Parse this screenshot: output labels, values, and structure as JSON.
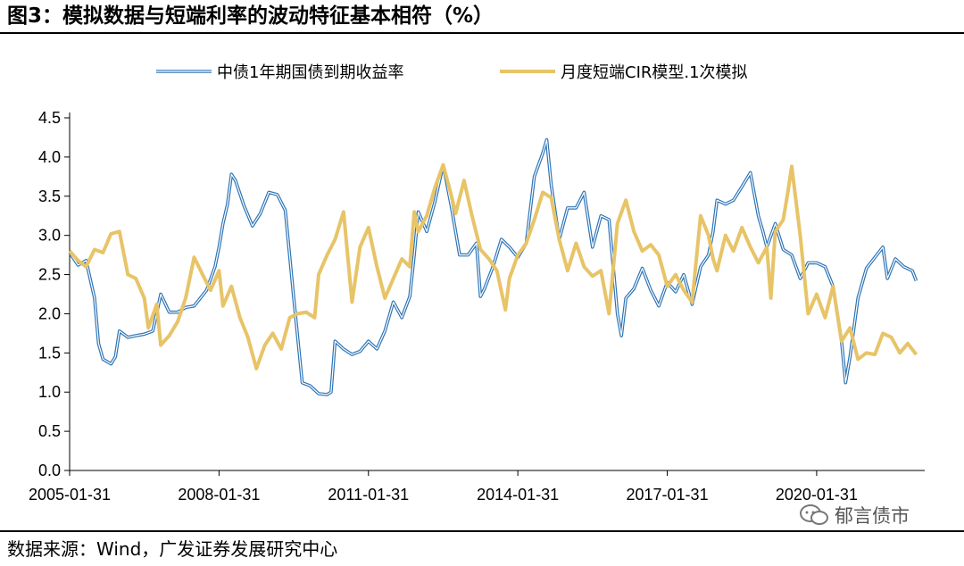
{
  "figure": {
    "title": "图3：模拟数据与短端利率的波动特征基本相符（%）",
    "source": "数据来源：Wind，广发证券发展研究中心",
    "watermark": "郁言债市"
  },
  "chart_data": {
    "type": "line",
    "title": "",
    "xlabel": "",
    "ylabel": "",
    "ylim": [
      0,
      4.5
    ],
    "yticks": [
      "0.0",
      "0.5",
      "1.0",
      "1.5",
      "2.0",
      "2.5",
      "3.0",
      "3.5",
      "4.0",
      "4.5"
    ],
    "x_tick_labels": [
      "2005-01-31",
      "2008-01-31",
      "2011-01-31",
      "2014-01-31",
      "2017-01-31",
      "2020-01-31"
    ],
    "x_tick_years": [
      2005.0,
      2008.0,
      2011.0,
      2014.0,
      2017.0,
      2020.0
    ],
    "x_range": [
      2005.0,
      2022.17
    ],
    "grid": false,
    "legend_position": "top",
    "series": [
      {
        "name": "中债1年期国债到期收益率",
        "color": "#2E75B6",
        "style": "double",
        "points": [
          [
            2005.0,
            2.78
          ],
          [
            2005.17,
            2.62
          ],
          [
            2005.33,
            2.68
          ],
          [
            2005.5,
            2.2
          ],
          [
            2005.58,
            1.62
          ],
          [
            2005.67,
            1.42
          ],
          [
            2005.83,
            1.36
          ],
          [
            2005.92,
            1.45
          ],
          [
            2006.0,
            1.78
          ],
          [
            2006.17,
            1.7
          ],
          [
            2006.33,
            1.72
          ],
          [
            2006.5,
            1.74
          ],
          [
            2006.67,
            1.78
          ],
          [
            2006.83,
            2.25
          ],
          [
            2007.0,
            2.02
          ],
          [
            2007.17,
            2.02
          ],
          [
            2007.33,
            2.08
          ],
          [
            2007.5,
            2.1
          ],
          [
            2007.75,
            2.3
          ],
          [
            2007.92,
            2.6
          ],
          [
            2008.0,
            2.85
          ],
          [
            2008.08,
            3.15
          ],
          [
            2008.17,
            3.4
          ],
          [
            2008.25,
            3.78
          ],
          [
            2008.33,
            3.7
          ],
          [
            2008.5,
            3.38
          ],
          [
            2008.67,
            3.12
          ],
          [
            2008.83,
            3.28
          ],
          [
            2009.0,
            3.55
          ],
          [
            2009.17,
            3.52
          ],
          [
            2009.33,
            3.32
          ],
          [
            2009.5,
            2.2
          ],
          [
            2009.67,
            1.12
          ],
          [
            2009.83,
            1.08
          ],
          [
            2010.0,
            0.98
          ],
          [
            2010.17,
            0.97
          ],
          [
            2010.25,
            1.0
          ],
          [
            2010.33,
            1.65
          ],
          [
            2010.5,
            1.55
          ],
          [
            2010.67,
            1.48
          ],
          [
            2010.83,
            1.52
          ],
          [
            2011.0,
            1.65
          ],
          [
            2011.17,
            1.55
          ],
          [
            2011.33,
            1.78
          ],
          [
            2011.5,
            2.15
          ],
          [
            2011.67,
            1.95
          ],
          [
            2011.83,
            2.22
          ],
          [
            2011.92,
            2.75
          ],
          [
            2012.0,
            3.3
          ],
          [
            2012.17,
            3.05
          ],
          [
            2012.33,
            3.42
          ],
          [
            2012.5,
            3.9
          ],
          [
            2012.67,
            3.35
          ],
          [
            2012.83,
            2.75
          ],
          [
            2013.0,
            2.75
          ],
          [
            2013.17,
            2.9
          ],
          [
            2013.25,
            2.22
          ],
          [
            2013.33,
            2.32
          ],
          [
            2013.5,
            2.6
          ],
          [
            2013.67,
            2.95
          ],
          [
            2013.83,
            2.85
          ],
          [
            2014.0,
            2.72
          ],
          [
            2014.17,
            2.9
          ],
          [
            2014.33,
            3.75
          ],
          [
            2014.5,
            4.05
          ],
          [
            2014.58,
            4.22
          ],
          [
            2014.67,
            3.65
          ],
          [
            2014.83,
            2.95
          ],
          [
            2015.0,
            3.35
          ],
          [
            2015.17,
            3.35
          ],
          [
            2015.33,
            3.55
          ],
          [
            2015.5,
            2.85
          ],
          [
            2015.67,
            3.25
          ],
          [
            2015.83,
            3.2
          ],
          [
            2016.0,
            2.0
          ],
          [
            2016.08,
            1.72
          ],
          [
            2016.17,
            2.2
          ],
          [
            2016.33,
            2.32
          ],
          [
            2016.5,
            2.58
          ],
          [
            2016.67,
            2.3
          ],
          [
            2016.83,
            2.1
          ],
          [
            2017.0,
            2.4
          ],
          [
            2017.17,
            2.28
          ],
          [
            2017.33,
            2.5
          ],
          [
            2017.5,
            2.12
          ],
          [
            2017.67,
            2.6
          ],
          [
            2017.83,
            2.75
          ],
          [
            2017.92,
            3.05
          ],
          [
            2018.0,
            3.45
          ],
          [
            2018.17,
            3.4
          ],
          [
            2018.33,
            3.45
          ],
          [
            2018.5,
            3.62
          ],
          [
            2018.67,
            3.8
          ],
          [
            2018.83,
            3.25
          ],
          [
            2018.92,
            3.05
          ],
          [
            2019.0,
            2.85
          ],
          [
            2019.17,
            3.15
          ],
          [
            2019.33,
            2.82
          ],
          [
            2019.5,
            2.75
          ],
          [
            2019.67,
            2.45
          ],
          [
            2019.83,
            2.65
          ],
          [
            2020.0,
            2.65
          ],
          [
            2020.17,
            2.6
          ],
          [
            2020.33,
            2.35
          ],
          [
            2020.5,
            1.65
          ],
          [
            2020.58,
            1.12
          ],
          [
            2020.67,
            1.45
          ],
          [
            2020.83,
            2.2
          ],
          [
            2021.0,
            2.58
          ],
          [
            2021.17,
            2.72
          ],
          [
            2021.33,
            2.85
          ],
          [
            2021.42,
            2.45
          ],
          [
            2021.58,
            2.7
          ],
          [
            2021.75,
            2.6
          ],
          [
            2021.92,
            2.55
          ],
          [
            2022.0,
            2.42
          ]
        ]
      },
      {
        "name": "月度短端CIR模型.1次模拟",
        "color": "#E8C468",
        "style": "solid",
        "points": [
          [
            2005.0,
            2.8
          ],
          [
            2005.17,
            2.68
          ],
          [
            2005.33,
            2.6
          ],
          [
            2005.5,
            2.82
          ],
          [
            2005.67,
            2.78
          ],
          [
            2005.83,
            3.02
          ],
          [
            2006.0,
            3.05
          ],
          [
            2006.17,
            2.5
          ],
          [
            2006.33,
            2.45
          ],
          [
            2006.5,
            2.2
          ],
          [
            2006.58,
            1.82
          ],
          [
            2006.75,
            2.12
          ],
          [
            2006.83,
            1.6
          ],
          [
            2007.0,
            1.72
          ],
          [
            2007.17,
            1.9
          ],
          [
            2007.33,
            2.2
          ],
          [
            2007.5,
            2.72
          ],
          [
            2007.67,
            2.5
          ],
          [
            2007.83,
            2.3
          ],
          [
            2008.0,
            2.55
          ],
          [
            2008.08,
            2.1
          ],
          [
            2008.25,
            2.35
          ],
          [
            2008.42,
            1.95
          ],
          [
            2008.58,
            1.7
          ],
          [
            2008.75,
            1.3
          ],
          [
            2008.92,
            1.6
          ],
          [
            2009.08,
            1.75
          ],
          [
            2009.25,
            1.55
          ],
          [
            2009.42,
            1.95
          ],
          [
            2009.58,
            2.0
          ],
          [
            2009.75,
            2.02
          ],
          [
            2009.92,
            1.95
          ],
          [
            2010.0,
            2.5
          ],
          [
            2010.17,
            2.75
          ],
          [
            2010.33,
            2.95
          ],
          [
            2010.5,
            3.3
          ],
          [
            2010.67,
            2.15
          ],
          [
            2010.83,
            2.85
          ],
          [
            2011.0,
            3.1
          ],
          [
            2011.17,
            2.6
          ],
          [
            2011.33,
            2.2
          ],
          [
            2011.5,
            2.45
          ],
          [
            2011.67,
            2.7
          ],
          [
            2011.83,
            2.6
          ],
          [
            2011.92,
            3.3
          ],
          [
            2012.0,
            3.05
          ],
          [
            2012.17,
            3.25
          ],
          [
            2012.33,
            3.6
          ],
          [
            2012.5,
            3.9
          ],
          [
            2012.67,
            3.5
          ],
          [
            2012.75,
            3.28
          ],
          [
            2012.92,
            3.7
          ],
          [
            2013.08,
            3.25
          ],
          [
            2013.25,
            2.82
          ],
          [
            2013.42,
            2.7
          ],
          [
            2013.58,
            2.55
          ],
          [
            2013.75,
            2.05
          ],
          [
            2013.83,
            2.45
          ],
          [
            2014.0,
            2.75
          ],
          [
            2014.17,
            2.9
          ],
          [
            2014.33,
            3.2
          ],
          [
            2014.5,
            3.55
          ],
          [
            2014.67,
            3.48
          ],
          [
            2014.83,
            2.95
          ],
          [
            2015.0,
            2.55
          ],
          [
            2015.17,
            2.9
          ],
          [
            2015.33,
            2.6
          ],
          [
            2015.5,
            2.48
          ],
          [
            2015.67,
            2.55
          ],
          [
            2015.83,
            2.0
          ],
          [
            2016.0,
            3.15
          ],
          [
            2016.17,
            3.45
          ],
          [
            2016.33,
            3.05
          ],
          [
            2016.5,
            2.8
          ],
          [
            2016.67,
            2.88
          ],
          [
            2016.83,
            2.75
          ],
          [
            2017.0,
            2.35
          ],
          [
            2017.17,
            2.5
          ],
          [
            2017.33,
            2.3
          ],
          [
            2017.5,
            2.15
          ],
          [
            2017.67,
            3.25
          ],
          [
            2017.83,
            3.0
          ],
          [
            2017.92,
            2.7
          ],
          [
            2018.0,
            2.55
          ],
          [
            2018.17,
            3.0
          ],
          [
            2018.33,
            2.8
          ],
          [
            2018.5,
            3.1
          ],
          [
            2018.67,
            2.85
          ],
          [
            2018.83,
            2.65
          ],
          [
            2019.0,
            2.85
          ],
          [
            2019.08,
            2.2
          ],
          [
            2019.17,
            3.05
          ],
          [
            2019.33,
            3.2
          ],
          [
            2019.42,
            3.55
          ],
          [
            2019.5,
            3.88
          ],
          [
            2019.67,
            3.0
          ],
          [
            2019.83,
            2.0
          ],
          [
            2020.0,
            2.25
          ],
          [
            2020.17,
            1.95
          ],
          [
            2020.33,
            2.35
          ],
          [
            2020.5,
            1.65
          ],
          [
            2020.67,
            1.82
          ],
          [
            2020.83,
            1.42
          ],
          [
            2021.0,
            1.5
          ],
          [
            2021.17,
            1.48
          ],
          [
            2021.33,
            1.75
          ],
          [
            2021.5,
            1.7
          ],
          [
            2021.67,
            1.5
          ],
          [
            2021.83,
            1.62
          ],
          [
            2022.0,
            1.48
          ]
        ]
      }
    ]
  }
}
